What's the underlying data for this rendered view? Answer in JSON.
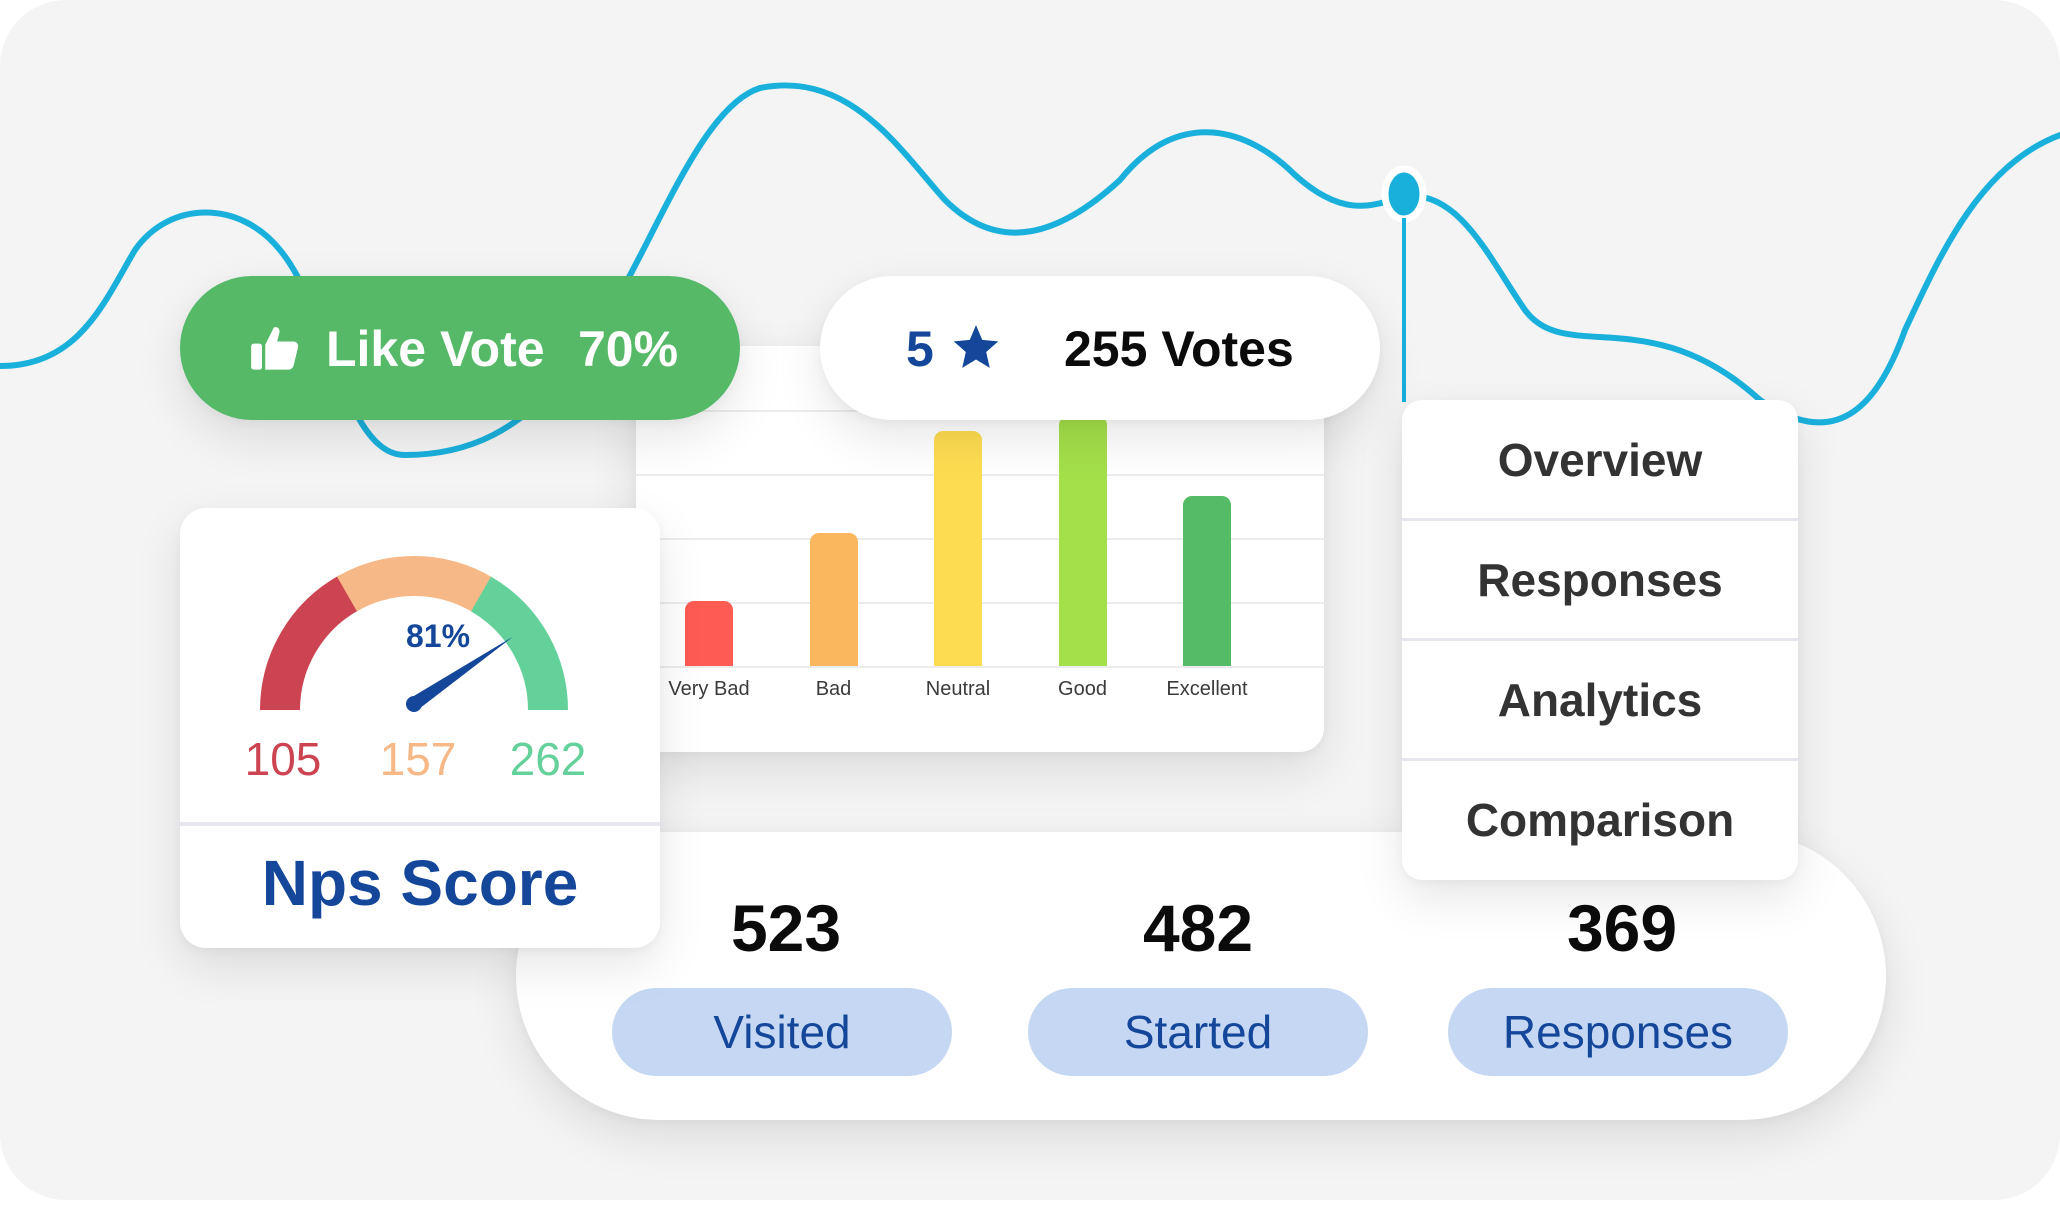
{
  "like_vote": {
    "label": "Like Vote",
    "percent": "70%",
    "icon": "thumbs-up-icon"
  },
  "votes": {
    "rating": "5",
    "icon": "star-icon",
    "count_label": "255 Votes"
  },
  "bar_chart": {
    "categories": [
      "Very Bad",
      "Bad",
      "Neutral",
      "Good",
      "Excellent"
    ],
    "relative_values": [
      0.26,
      0.53,
      0.94,
      1.0,
      0.68
    ],
    "colors": [
      "#fe5b53",
      "#fbb75e",
      "#fedc51",
      "#a4e04a",
      "#56bb67"
    ]
  },
  "nps": {
    "gauge_percent": "81%",
    "gauge_value": 0.81,
    "detractors": "105",
    "passives": "157",
    "promoters": "262",
    "title": "Nps Score",
    "colors": {
      "detractors": "#cc4451",
      "passives": "#f6b886",
      "promoters": "#64d19b",
      "needle": "#14479a"
    }
  },
  "menu": {
    "items": [
      {
        "label": "Overview"
      },
      {
        "label": "Responses"
      },
      {
        "label": "Analytics"
      },
      {
        "label": "Comparison"
      }
    ]
  },
  "stats": [
    {
      "value": "523",
      "label": "Visited"
    },
    {
      "value": "482",
      "label": "Started"
    },
    {
      "value": "369",
      "label": "Responses"
    }
  ],
  "accent_colors": {
    "line": "#1ab0dc",
    "brand_blue": "#14479a",
    "pill_bg": "#c6d7f4",
    "like_green": "#55b967"
  }
}
